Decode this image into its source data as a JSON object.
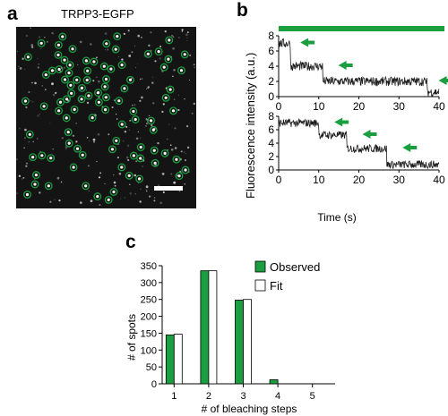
{
  "panels": {
    "a": "a",
    "b": "b",
    "c": "c"
  },
  "colors": {
    "green": "#1a9e3f",
    "trace": "#1a1a1a",
    "axis": "#000000",
    "fit_fill": "#ffffff"
  },
  "chart_data": [
    {
      "panel": "a",
      "type": "other",
      "title": "TRPP3-EGFP",
      "description_visible": "fluorescence image with spots circled",
      "scale_bar": true
    },
    {
      "panel": "b",
      "type": "line",
      "ylabel": "Fluorescence intensity (a.u.)",
      "xlabel": "Time (s)",
      "xlim": [
        0,
        40
      ],
      "ylim": [
        0,
        8
      ],
      "xticks": [
        0,
        10,
        20,
        30,
        40
      ],
      "yticks": [
        0,
        2,
        4,
        6,
        8
      ],
      "traces": [
        {
          "steps": [
            {
              "t0": 0,
              "t1": 3,
              "level": 7.0
            },
            {
              "t0": 3,
              "t1": 11,
              "level": 4.0
            },
            {
              "t0": 11,
              "t1": 37,
              "level": 2.0
            },
            {
              "t0": 37,
              "t1": 40,
              "level": 0.6
            }
          ],
          "arrows_at": [
            {
              "t": 4.5,
              "level": 7.0
            },
            {
              "t": 14,
              "level": 4.0
            },
            {
              "t": 39,
              "level": 2.0
            }
          ]
        },
        {
          "steps": [
            {
              "t0": 0,
              "t1": 10,
              "level": 7.0
            },
            {
              "t0": 10,
              "t1": 17,
              "level": 5.2
            },
            {
              "t0": 17,
              "t1": 27,
              "level": 3.2
            },
            {
              "t0": 27,
              "t1": 40,
              "level": 0.8
            }
          ],
          "arrows_at": [
            {
              "t": 13,
              "level": 7.0
            },
            {
              "t": 20,
              "level": 5.2
            },
            {
              "t": 30,
              "level": 3.2
            }
          ]
        }
      ]
    },
    {
      "panel": "c",
      "type": "bar",
      "categories": [
        "1",
        "2",
        "3",
        "4",
        "5"
      ],
      "series": [
        {
          "name": "Observed",
          "values": [
            145,
            335,
            248,
            12,
            0
          ]
        },
        {
          "name": "Fit",
          "values": [
            147,
            335,
            250,
            0,
            0
          ]
        }
      ],
      "xlabel": "# of bleaching steps",
      "ylabel": "# of spots",
      "ylim": [
        0,
        350
      ],
      "yticks": [
        "0",
        "50",
        "100",
        "150",
        "200",
        "250",
        "300",
        "350"
      ],
      "legend": "top-right"
    }
  ]
}
